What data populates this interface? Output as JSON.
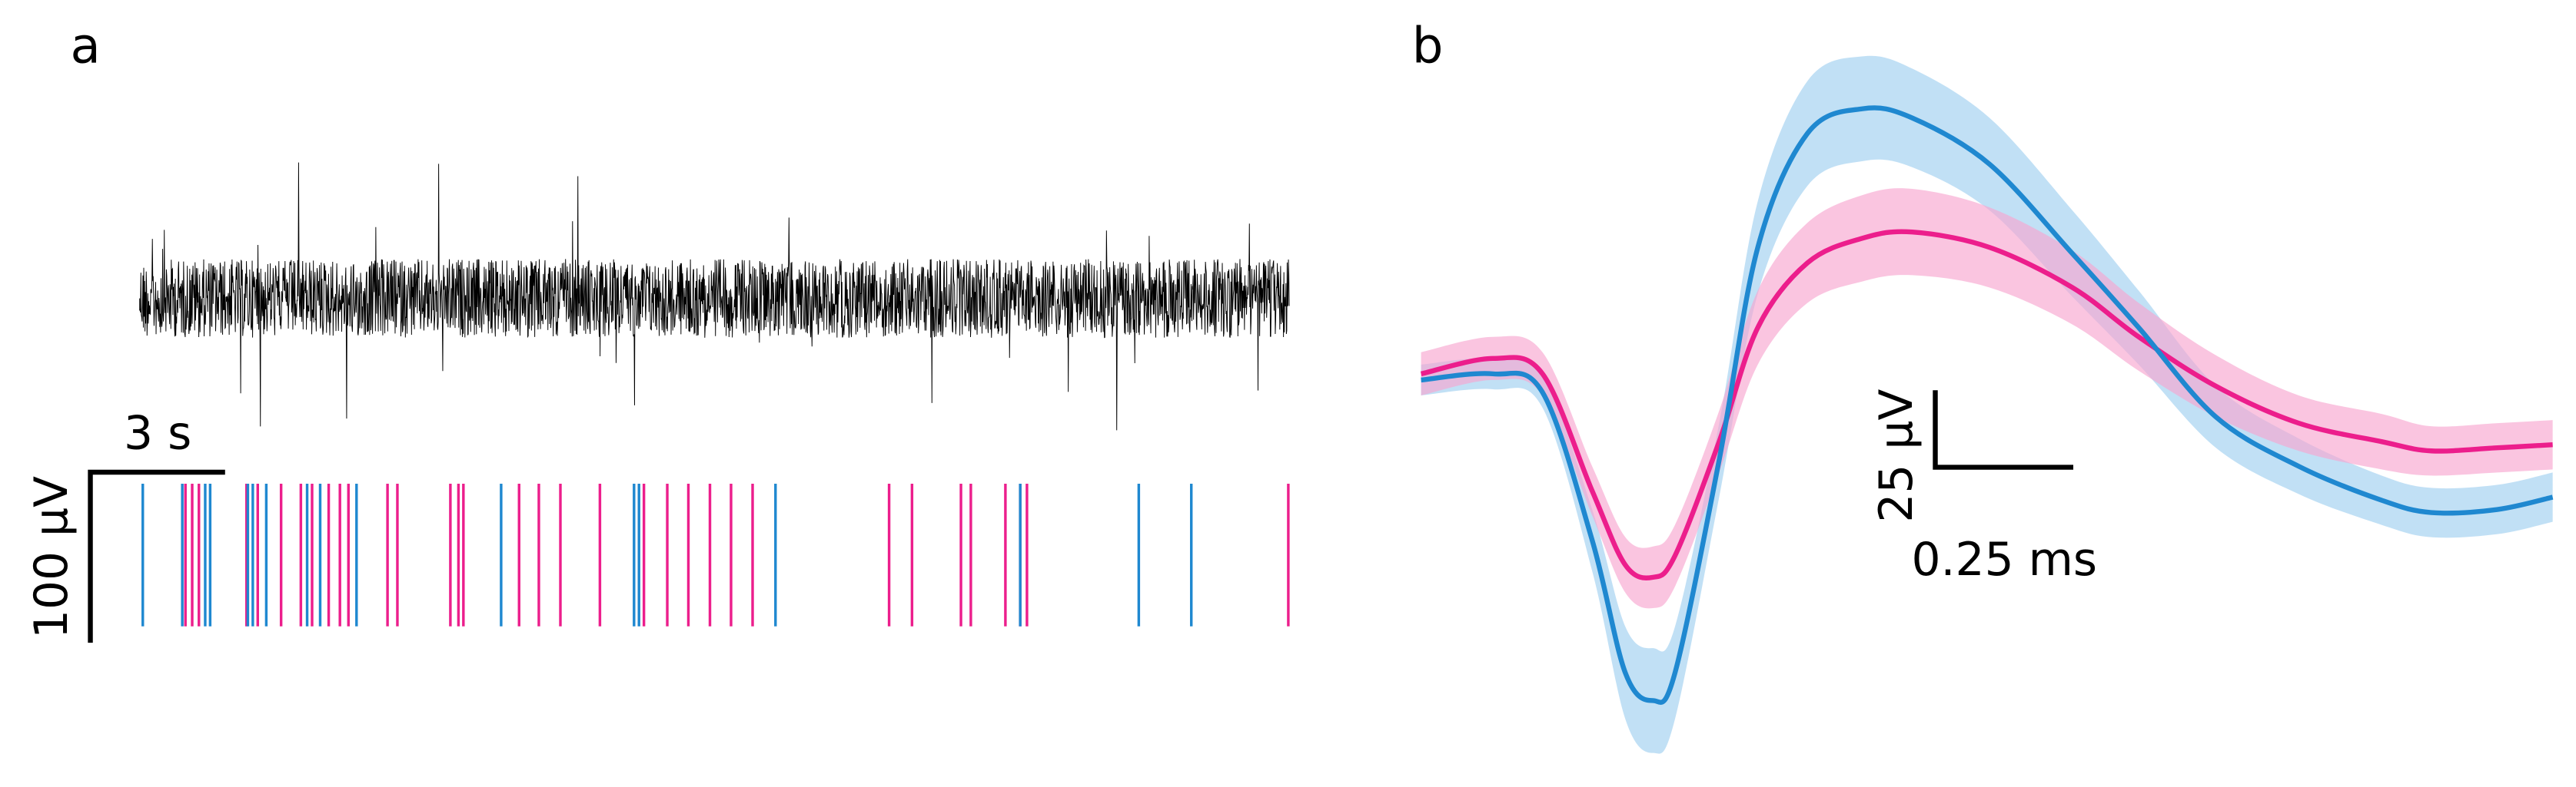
{
  "chart_data": [
    {
      "type": "raster",
      "label": "a",
      "x_scale_label": "3 s",
      "y_scale_label": "100 µV",
      "series": [
        {
          "color": "#ec1e8c",
          "values": [
            1.02,
            1.17,
            1.32,
            2.38,
            2.63,
            3.15,
            3.59,
            3.84,
            4.21,
            4.46,
            4.65,
            5.52,
            5.74,
            6.92,
            7.1,
            7.21,
            8.45,
            8.89,
            9.37,
            10.25,
            11.23,
            11.75,
            12.22,
            12.7,
            13.17,
            13.65,
            16.69,
            17.2,
            18.29,
            18.51,
            19.28,
            19.61,
            19.76,
            25.58
          ]
        },
        {
          "color": "#1f88d0",
          "values": [
            0.07,
            0.95,
            1.46,
            1.57,
            2.41,
            2.52,
            2.82,
            3.73,
            4.02,
            4.83,
            8.05,
            11.01,
            11.12,
            14.16,
            19.61,
            22.25,
            23.42
          ]
        }
      ]
    },
    {
      "type": "line",
      "label": "b",
      "x_scale_label": "0.25 ms",
      "y_scale_label": "25 µV",
      "x": [
        0,
        0.13,
        0.22,
        0.31,
        0.37,
        0.42,
        0.46,
        0.54,
        0.61,
        0.7,
        0.8,
        0.89,
        1.03,
        1.18,
        1.3,
        1.44,
        1.59,
        1.74,
        1.83,
        1.95,
        2.05
      ],
      "series": [
        {
          "color": "#1f88d0",
          "band_color": "#9fd0ef",
          "values": [
            -2,
            0,
            -6,
            -54,
            -97,
            -106,
            -97,
            -28,
            41,
            78,
            86,
            83,
            68,
            39,
            15,
            -14,
            -30,
            -41,
            -45,
            -44,
            -40
          ],
          "band": [
            5,
            5,
            5,
            10,
            15,
            17,
            15,
            12,
            15,
            17,
            17,
            16,
            15,
            14,
            12,
            10,
            9,
            8,
            8,
            8,
            8
          ]
        },
        {
          "color": "#ec1e8c",
          "band_color": "#f8a6cf",
          "values": [
            0,
            5,
            0,
            -38,
            -62,
            -66,
            -59,
            -22,
            15,
            36,
            44,
            46,
            41,
            28,
            12,
            -4,
            -16,
            -22,
            -25,
            -24,
            -23
          ],
          "band": [
            7,
            7,
            7,
            8,
            9,
            10,
            10,
            10,
            12,
            13,
            14,
            14,
            13,
            12,
            11,
            10,
            9,
            9,
            8,
            8,
            8
          ]
        }
      ]
    }
  ]
}
